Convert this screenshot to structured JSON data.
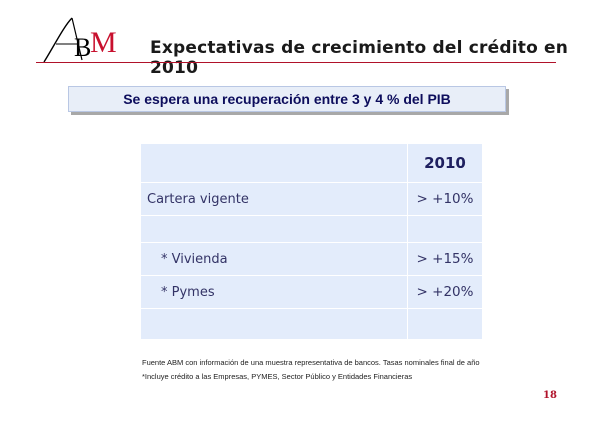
{
  "logo": {
    "text": "ABM"
  },
  "slide": {
    "title": "Expectativas de crecimiento del crédito en 2010",
    "banner": "Se espera una recuperación entre 3 y 4 % del PIB",
    "page_number": "18"
  },
  "table": {
    "header_year": "2010",
    "rows": [
      {
        "label": "Cartera vigente",
        "value": "> +10%"
      },
      {
        "label": "* Vivienda",
        "value": "> +15%"
      },
      {
        "label": "*  Pymes",
        "value": "> +20%"
      }
    ]
  },
  "footnotes": {
    "source": "Fuente ABM con información de una muestra representativa de bancos. Tasas nominales final de año",
    "note": "*Incluye crédito a las Empresas, PYMES, Sector Público y Entidades Financieras"
  },
  "colors": {
    "accent_red": "#b0122a",
    "table_bg": "#e3ecfb",
    "banner_text": "#0d0d5c"
  }
}
